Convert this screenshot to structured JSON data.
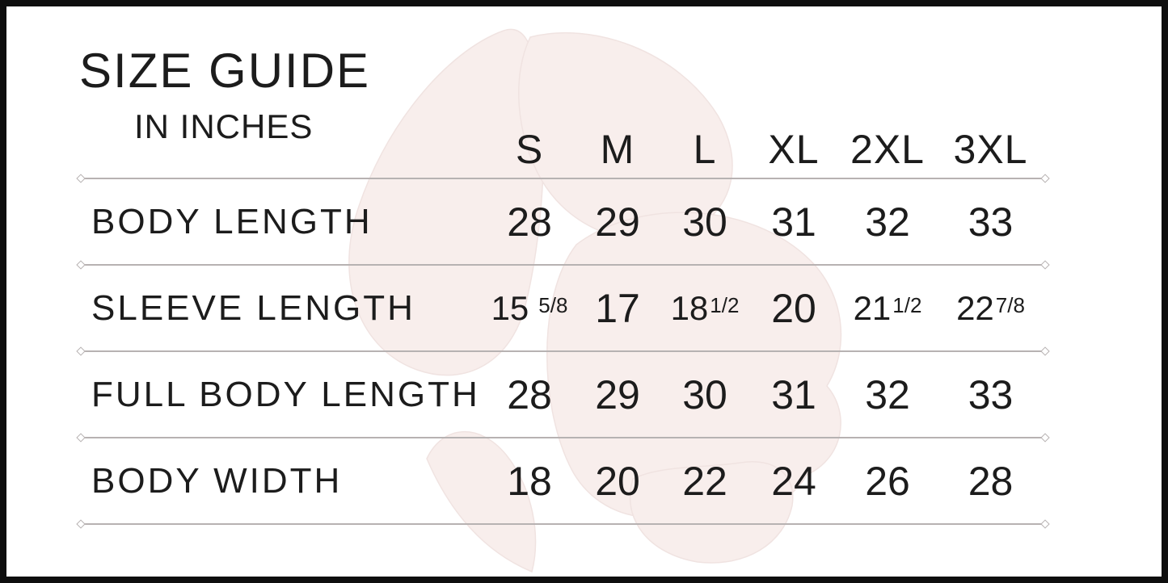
{
  "header": {
    "title": "SIZE GUIDE",
    "subtitle": "IN INCHES"
  },
  "table": {
    "columns": [
      "S",
      "M",
      "L",
      "XL",
      "2XL",
      "3XL"
    ],
    "rows": [
      {
        "label": "BODY LENGTH",
        "cells": [
          {
            "main": "28"
          },
          {
            "main": "29"
          },
          {
            "main": "30"
          },
          {
            "main": "31"
          },
          {
            "main": "32"
          },
          {
            "main": "33"
          }
        ]
      },
      {
        "label": "SLEEVE LENGTH",
        "cells": [
          {
            "main": "15",
            "frac": "5/8",
            "gap": true
          },
          {
            "main": "17"
          },
          {
            "main": "18",
            "frac": "1/2"
          },
          {
            "main": "20"
          },
          {
            "main": "21",
            "frac": "1/2"
          },
          {
            "main": "22",
            "frac": "7/8"
          }
        ]
      },
      {
        "label": "FULL BODY LENGTH",
        "cells": [
          {
            "main": "28"
          },
          {
            "main": "29"
          },
          {
            "main": "30"
          },
          {
            "main": "31"
          },
          {
            "main": "32"
          },
          {
            "main": "33"
          }
        ]
      },
      {
        "label": "BODY WIDTH",
        "cells": [
          {
            "main": "18"
          },
          {
            "main": "20"
          },
          {
            "main": "22"
          },
          {
            "main": "24"
          },
          {
            "main": "26"
          },
          {
            "main": "28"
          }
        ]
      }
    ]
  },
  "watermark": {
    "icon": "butterfly-watermark",
    "color": "#f8eeec",
    "edge_color": "#f0e3e1"
  },
  "style": {
    "text_color": "#1c1c1c",
    "divider_color": "#b7b2b2",
    "border_color": "#0e0e0e",
    "background": "#ffffff"
  }
}
